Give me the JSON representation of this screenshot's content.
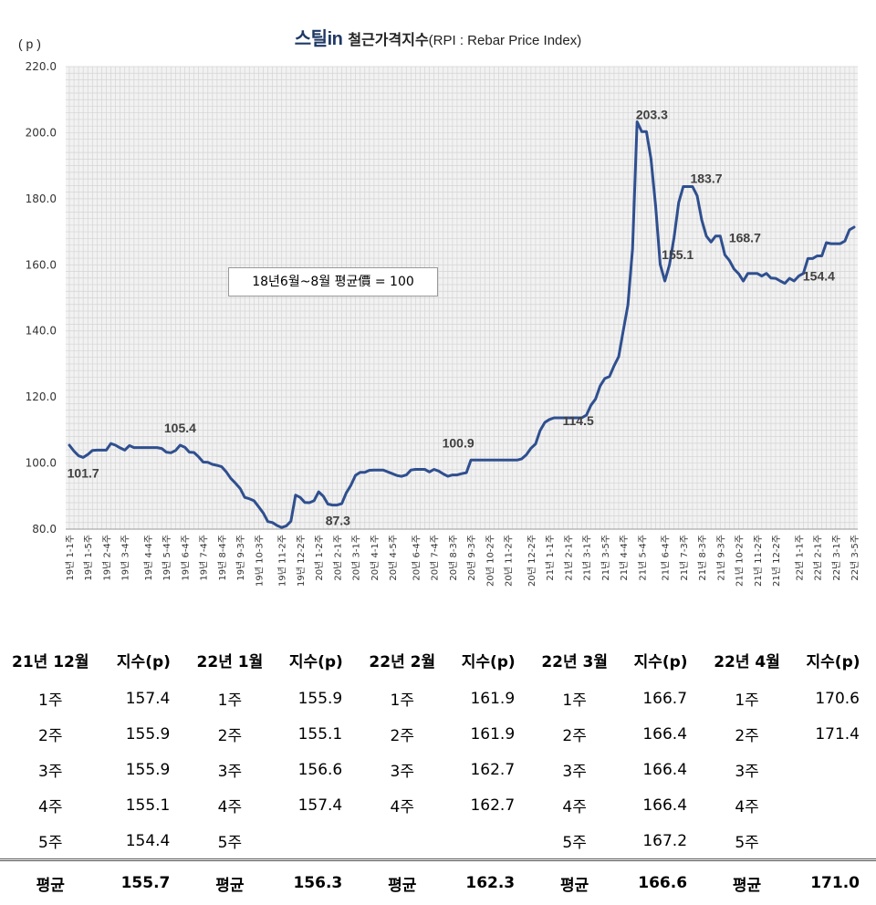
{
  "header": {
    "brand": "스틸",
    "brand_suffix": "in",
    "title": "철근가격지수",
    "subtitle": "(RPI : Rebar Price Index)",
    "unit": "( p )"
  },
  "note": "18년6월~8월 평균價 = 100",
  "chart_data": {
    "type": "line",
    "title": "철근가격지수(RPI : Rebar Price Index)",
    "ylabel": "( p )",
    "ylim": [
      80.0,
      220.0
    ],
    "yticks": [
      "80.0",
      "100.0",
      "120.0",
      "140.0",
      "160.0",
      "180.0",
      "200.0",
      "220.0"
    ],
    "grid": true,
    "line_color": "#2f4f8f",
    "xticks": [
      "19년 1-1주",
      "19년 1-5주",
      "19년 2-4주",
      "19년 3-4주",
      "19년 4-4주",
      "19년 5-4주",
      "19년 6-4주",
      "19년 7-4주",
      "19년 8-4주",
      "19년 9-3주",
      "19년 10-3주",
      "19년 11-2주",
      "19년 12-2주",
      "20년 1-2주",
      "20년 2-1주",
      "20년 3-1주",
      "20년 4-1주",
      "20년 4-5주",
      "20년 6-4주",
      "20년 7-4주",
      "20년 8-3주",
      "20년 9-3주",
      "20년 10-2주",
      "20년 11-2주",
      "20년 12-2주",
      "21년 1-1주",
      "21년 2-1주",
      "21년 3-1주",
      "21년 3-5주",
      "21년 4-4주",
      "21년 5-4주",
      "21년 6-4주",
      "21년 7-3주",
      "21년 8-3주",
      "21년 9-3주",
      "21년 10-2주",
      "21년 11-2주",
      "21년 12-2주",
      "22년 1-1주",
      "22년 2-1주",
      "22년 3-1주",
      "22년 3-5주"
    ],
    "values": [
      105.4,
      103.6,
      102.2,
      101.7,
      102.6,
      103.8,
      103.9,
      103.9,
      103.9,
      105.9,
      105.4,
      104.6,
      103.9,
      105.3,
      104.7,
      104.7,
      104.7,
      104.7,
      104.7,
      104.7,
      104.4,
      103.3,
      103.1,
      103.8,
      105.4,
      104.8,
      103.3,
      103.2,
      101.9,
      100.3,
      100.2,
      99.6,
      99.3,
      98.9,
      97.3,
      95.3,
      93.9,
      92.3,
      89.6,
      89.2,
      88.6,
      86.8,
      84.9,
      82.3,
      82.0,
      81.1,
      80.5,
      81.0,
      82.4,
      90.3,
      89.6,
      88.1,
      88.0,
      88.6,
      91.3,
      90.0,
      87.6,
      87.3,
      87.3,
      87.7,
      91.0,
      93.3,
      96.3,
      97.2,
      97.2,
      97.8,
      97.9,
      97.9,
      97.9,
      97.3,
      96.8,
      96.2,
      96.0,
      96.4,
      97.9,
      98.1,
      98.1,
      98.1,
      97.3,
      98.1,
      97.6,
      96.7,
      96.0,
      96.4,
      96.4,
      96.8,
      97.1,
      100.9,
      100.9,
      100.9,
      100.9,
      100.9,
      100.9,
      100.9,
      100.9,
      100.9,
      100.9,
      100.9,
      101.3,
      102.5,
      104.5,
      105.8,
      109.9,
      112.3,
      113.2,
      113.7,
      113.7,
      113.7,
      113.7,
      113.7,
      113.7,
      113.7,
      114.5,
      117.5,
      119.4,
      123.4,
      125.6,
      126.2,
      129.4,
      132.2,
      140.2,
      147.8,
      164.8,
      203.3,
      200.3,
      200.3,
      192.1,
      177.8,
      160.1,
      155.1,
      159.9,
      168.3,
      178.9,
      183.7,
      183.7,
      183.7,
      180.9,
      173.5,
      168.7,
      166.9,
      168.7,
      168.7,
      163.0,
      161.3,
      158.7,
      157.3,
      155.1,
      157.4,
      157.4,
      157.4,
      156.6,
      157.4,
      156.0,
      155.9,
      155.1,
      154.4,
      155.9,
      155.1,
      156.6,
      157.4,
      161.9,
      161.9,
      162.7,
      162.7,
      166.7,
      166.4,
      166.4,
      166.4,
      167.2,
      170.6,
      171.4
    ],
    "annotations": [
      {
        "label": "101.7",
        "index": 3
      },
      {
        "label": "105.4",
        "index": 24
      },
      {
        "label": "87.3",
        "index": 57
      },
      {
        "label": "100.9",
        "index": 87
      },
      {
        "label": "114.5",
        "index": 113
      },
      {
        "label": "203.3",
        "index": 125
      },
      {
        "label": "155.1",
        "index": 131
      },
      {
        "label": "183.7",
        "index": 136
      },
      {
        "label": "168.7",
        "index": 142
      },
      {
        "label": "154.4",
        "index": 160
      },
      {
        "label": "171.4",
        "index": 174
      }
    ]
  },
  "table": {
    "headers": [
      "21년 12월",
      "지수(p)",
      "22년 1월",
      "지수(p)",
      "22년 2월",
      "지수(p)",
      "22년 3월",
      "지수(p)",
      "22년 4월",
      "지수(p)"
    ],
    "rows": [
      [
        "1주",
        "157.4",
        "1주",
        "155.9",
        "1주",
        "161.9",
        "1주",
        "166.7",
        "1주",
        "170.6"
      ],
      [
        "2주",
        "155.9",
        "2주",
        "155.1",
        "2주",
        "161.9",
        "2주",
        "166.4",
        "2주",
        "171.4"
      ],
      [
        "3주",
        "155.9",
        "3주",
        "156.6",
        "3주",
        "162.7",
        "3주",
        "166.4",
        "3주",
        ""
      ],
      [
        "4주",
        "155.1",
        "4주",
        "157.4",
        "4주",
        "162.7",
        "4주",
        "166.4",
        "4주",
        ""
      ],
      [
        "5주",
        "154.4",
        "5주",
        "",
        "",
        "",
        "5주",
        "167.2",
        "5주",
        ""
      ]
    ],
    "avg_row": [
      "평균",
      "155.7",
      "평균",
      "156.3",
      "평균",
      "162.3",
      "평균",
      "166.6",
      "평균",
      "171.0"
    ]
  }
}
